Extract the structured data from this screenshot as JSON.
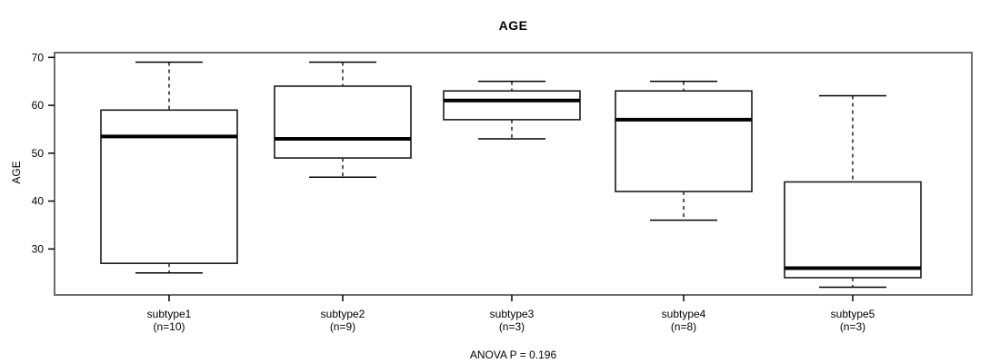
{
  "chart_data": {
    "type": "boxplot",
    "title": "AGE",
    "ylabel": "AGE",
    "annotation": "ANOVA P = 0.196",
    "yticks": [
      30,
      40,
      50,
      60,
      70
    ],
    "ylim": [
      20.4,
      71.0
    ],
    "grid": false,
    "groups": [
      {
        "label": "subtype1",
        "sublabel": "(n=10)",
        "n": 10,
        "whisker_low": 25,
        "q1": 27,
        "median": 53.5,
        "q3": 59,
        "whisker_high": 69
      },
      {
        "label": "subtype2",
        "sublabel": "(n=9)",
        "n": 9,
        "whisker_low": 45,
        "q1": 49,
        "median": 53,
        "q3": 64,
        "whisker_high": 69
      },
      {
        "label": "subtype3",
        "sublabel": "(n=3)",
        "n": 3,
        "whisker_low": 53,
        "q1": 57,
        "median": 61,
        "q3": 63,
        "whisker_high": 65
      },
      {
        "label": "subtype4",
        "sublabel": "(n=8)",
        "n": 8,
        "whisker_low": 36,
        "q1": 42,
        "median": 57,
        "q3": 63,
        "whisker_high": 65
      },
      {
        "label": "subtype5",
        "sublabel": "(n=3)",
        "n": 3,
        "whisker_low": 22,
        "q1": 24,
        "median": 26,
        "q3": 44,
        "whisker_high": 62
      }
    ],
    "colors": {
      "line": "#000000",
      "box_stroke": "#1a1a1a",
      "box_fill": "#ffffff",
      "frame": "#6e6e6e",
      "background": "#ffffff"
    }
  }
}
